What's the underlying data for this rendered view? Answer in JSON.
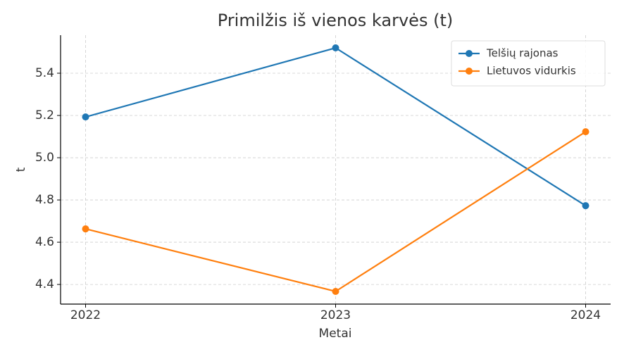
{
  "chart_data": {
    "type": "line",
    "title": "Primilžis iš vienos karvės (t)",
    "x_label": "Metai",
    "y_label": "t",
    "x": [
      2022,
      2023,
      2024
    ],
    "series": [
      {
        "name": "Telšių rajonas",
        "color": "#1f77b4",
        "values": [
          5.193,
          5.52,
          4.773
        ]
      },
      {
        "name": "Lietuvos vidurkis",
        "color": "#ff7f0e",
        "values": [
          4.663,
          4.367,
          5.123
        ]
      }
    ],
    "xlim": [
      2021.9,
      2024.1
    ],
    "xticks": [
      2022,
      2023,
      2024
    ],
    "ylim": [
      4.307,
      5.58
    ],
    "yticks": [
      4.4,
      4.6,
      4.8,
      {
        "value": 5,
        "label": "5.0"
      },
      5.2,
      5.4
    ],
    "grid": true,
    "legend": "upper right"
  }
}
